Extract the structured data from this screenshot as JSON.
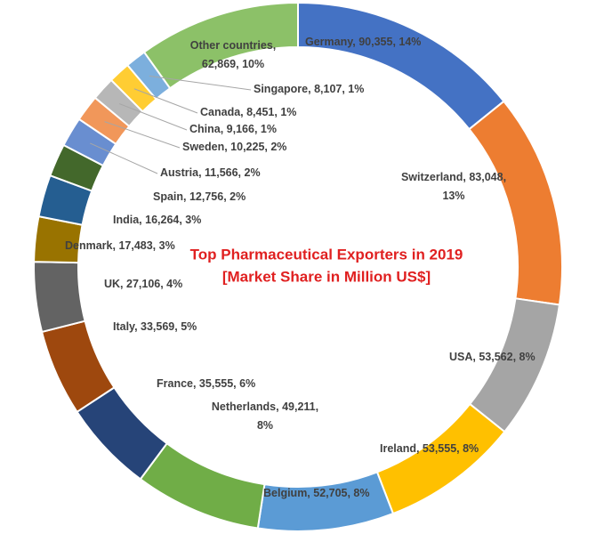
{
  "chart_data": {
    "type": "donut",
    "title": "Top Pharmaceutical Exporters in 2019",
    "subtitle": "[Market Share in Million US$]",
    "categories": [
      "Germany",
      "Switzerland",
      "USA",
      "Ireland",
      "Belgium",
      "Netherlands",
      "France",
      "Italy",
      "UK",
      "Denmark",
      "India",
      "Spain",
      "Austria",
      "Sweden",
      "China",
      "Canada",
      "Singapore",
      "Other countries"
    ],
    "values": [
      90355,
      83048,
      53562,
      53555,
      52705,
      49211,
      35555,
      33569,
      27106,
      17483,
      16264,
      12756,
      11566,
      10225,
      9166,
      8451,
      8107,
      62869
    ],
    "value_labels": [
      "Germany, 90,355, 14%",
      "Switzerland, 83,048,\n13%",
      "USA, 53,562, 8%",
      "Ireland, 53,555, 8%",
      "Belgium, 52,705, 8%",
      "Netherlands, 49,211,\n8%",
      "France, 35,555, 6%",
      "Italy, 33,569, 5%",
      "UK, 27,106, 4%",
      "Denmark, 17,483, 3%",
      "India, 16,264, 3%",
      "Spain, 12,756, 2%",
      "Austria, 11,566, 2%",
      "Sweden, 10,225, 2%",
      "China, 9,166, 1%",
      "Canada, 8,451, 1%",
      "Singapore, 8,107, 1%",
      "Other countries,\n62,869, 10%"
    ],
    "colors": [
      "#4472c4",
      "#ed7d31",
      "#a5a5a5",
      "#ffc000",
      "#5b9bd5",
      "#70ad47",
      "#264478",
      "#9e480e",
      "#636363",
      "#997300",
      "#255e91",
      "#43682b",
      "#698ed0",
      "#f1975a",
      "#b7b7b7",
      "#ffcd33",
      "#7cafdd",
      "#8cc168"
    ]
  }
}
